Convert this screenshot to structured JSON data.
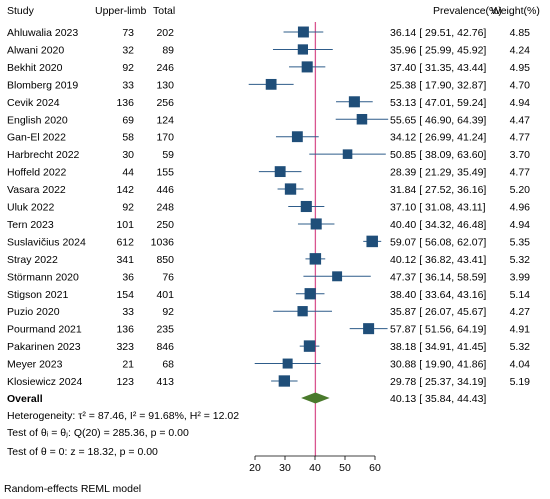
{
  "headers": {
    "study": "Study",
    "upper_limb": "Upper-limb",
    "total": "Total",
    "prevalence": "Prevalence(%)",
    "weight": "Weight(%)"
  },
  "overall_label": "Overall",
  "overall_ci_text": "40.13 [ 35.84, 44.43]",
  "stats": {
    "heterogeneity": "Heterogeneity: τ² = 87.46, I² = 91.68%, H² = 12.02",
    "test_theta_i": "Test of θᵢ = θⱼ: Q(20) = 285.36, p = 0.00",
    "test_theta_0": "Test of θ = 0: z = 18.32, p = 0.00"
  },
  "footer_note": "Random-effects REML model",
  "colors": {
    "marker": "#1f4e79",
    "ci_line": "#2e5c8a",
    "overall_diamond": "#4a7a2c",
    "null_line": "#d9558f"
  },
  "chart_data": {
    "type": "scatter",
    "subtype": "forest",
    "xlim": [
      15,
      65
    ],
    "x_ticks": [
      "20",
      "30",
      "40",
      "50",
      "60"
    ],
    "reference_line": 40.13,
    "grid": false,
    "studies": [
      {
        "study": "Ahluwalia 2023",
        "upper_limb": "73",
        "total": "202",
        "est": 36.14,
        "lo": 29.51,
        "hi": 42.76,
        "ci_text": "36.14 [ 29.51, 42.76]",
        "weight": "4.85"
      },
      {
        "study": "Alwani 2020",
        "upper_limb": "32",
        "total": "89",
        "est": 35.96,
        "lo": 25.99,
        "hi": 45.92,
        "ci_text": "35.96 [ 25.99, 45.92]",
        "weight": "4.24"
      },
      {
        "study": "Bekhit  2020",
        "upper_limb": "92",
        "total": "246",
        "est": 37.4,
        "lo": 31.35,
        "hi": 43.44,
        "ci_text": "37.40 [ 31.35, 43.44]",
        "weight": "4.95"
      },
      {
        "study": "Blomberg 2019",
        "upper_limb": "33",
        "total": "130",
        "est": 25.38,
        "lo": 17.9,
        "hi": 32.87,
        "ci_text": "25.38 [ 17.90, 32.87]",
        "weight": "4.70"
      },
      {
        "study": "Cevik 2024",
        "upper_limb": "136",
        "total": "256",
        "est": 53.13,
        "lo": 47.01,
        "hi": 59.24,
        "ci_text": "53.13 [ 47.01, 59.24]",
        "weight": "4.94"
      },
      {
        "study": "English  2020",
        "upper_limb": "69",
        "total": "124",
        "est": 55.65,
        "lo": 46.9,
        "hi": 64.39,
        "ci_text": "55.65 [ 46.90, 64.39]",
        "weight": "4.47"
      },
      {
        "study": "Gan-El 2022",
        "upper_limb": "58",
        "total": "170",
        "est": 34.12,
        "lo": 26.99,
        "hi": 41.24,
        "ci_text": "34.12 [ 26.99, 41.24]",
        "weight": "4.77"
      },
      {
        "study": "Harbrecht 2022",
        "upper_limb": "30",
        "total": "59",
        "est": 50.85,
        "lo": 38.09,
        "hi": 63.6,
        "ci_text": "50.85 [ 38.09, 63.60]",
        "weight": "3.70"
      },
      {
        "study": "Hoffeld 2022",
        "upper_limb": "44",
        "total": "155",
        "est": 28.39,
        "lo": 21.29,
        "hi": 35.49,
        "ci_text": "28.39 [ 21.29, 35.49]",
        "weight": "4.77"
      },
      {
        "study": "Vasara 2022",
        "upper_limb": "142",
        "total": "446",
        "est": 31.84,
        "lo": 27.52,
        "hi": 36.16,
        "ci_text": "31.84 [ 27.52, 36.16]",
        "weight": "5.20"
      },
      {
        "study": "Uluk 2022",
        "upper_limb": "92",
        "total": "248",
        "est": 37.1,
        "lo": 31.08,
        "hi": 43.11,
        "ci_text": "37.10 [ 31.08, 43.11]",
        "weight": "4.96"
      },
      {
        "study": "Tern 2023",
        "upper_limb": "101",
        "total": "250",
        "est": 40.4,
        "lo": 34.32,
        "hi": 46.48,
        "ci_text": "40.40 [ 34.32, 46.48]",
        "weight": "4.94"
      },
      {
        "study": "Suslavičius 2024",
        "upper_limb": "612",
        "total": "1036",
        "est": 59.07,
        "lo": 56.08,
        "hi": 62.07,
        "ci_text": "59.07 [ 56.08, 62.07]",
        "weight": "5.35"
      },
      {
        "study": "Stray 2022",
        "upper_limb": "341",
        "total": "850",
        "est": 40.12,
        "lo": 36.82,
        "hi": 43.41,
        "ci_text": "40.12 [ 36.82, 43.41]",
        "weight": "5.32"
      },
      {
        "study": "Störmann 2020",
        "upper_limb": "36",
        "total": "76",
        "est": 47.37,
        "lo": 36.14,
        "hi": 58.59,
        "ci_text": "47.37 [ 36.14, 58.59]",
        "weight": "3.99"
      },
      {
        "study": "Stigson 2021",
        "upper_limb": "154",
        "total": "401",
        "est": 38.4,
        "lo": 33.64,
        "hi": 43.16,
        "ci_text": "38.40 [ 33.64, 43.16]",
        "weight": "5.14"
      },
      {
        "study": "Puzio 2020",
        "upper_limb": "33",
        "total": "92",
        "est": 35.87,
        "lo": 26.07,
        "hi": 45.67,
        "ci_text": "35.87 [ 26.07, 45.67]",
        "weight": "4.27"
      },
      {
        "study": "Pourmand 2021",
        "upper_limb": "136",
        "total": "235",
        "est": 57.87,
        "lo": 51.56,
        "hi": 64.19,
        "ci_text": "57.87 [ 51.56, 64.19]",
        "weight": "4.91"
      },
      {
        "study": "Pakarinen 2023",
        "upper_limb": "323",
        "total": "846",
        "est": 38.18,
        "lo": 34.91,
        "hi": 41.45,
        "ci_text": "38.18 [ 34.91, 41.45]",
        "weight": "5.32"
      },
      {
        "study": "Meyer 2023",
        "upper_limb": "21",
        "total": "68",
        "est": 30.88,
        "lo": 19.9,
        "hi": 41.86,
        "ci_text": "30.88 [ 19.90, 41.86]",
        "weight": "4.04"
      },
      {
        "study": "Klosiewicz 2024",
        "upper_limb": "123",
        "total": "413",
        "est": 29.78,
        "lo": 25.37,
        "hi": 34.19,
        "ci_text": "29.78 [ 25.37, 34.19]",
        "weight": "5.19"
      }
    ],
    "overall": {
      "est": 40.13,
      "lo": 35.84,
      "hi": 44.43
    }
  }
}
